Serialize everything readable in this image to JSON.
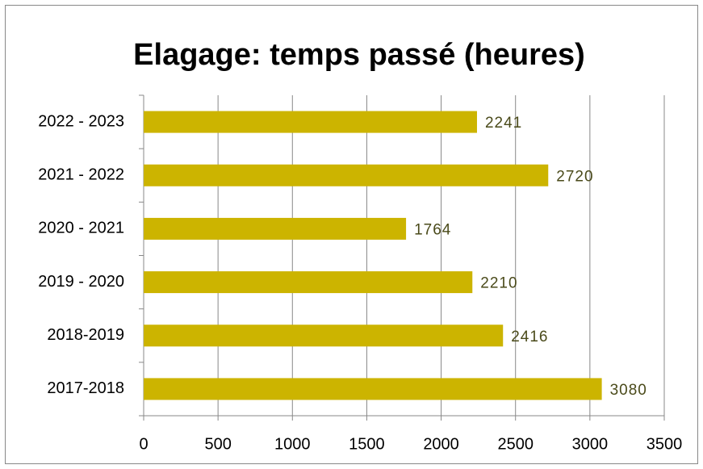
{
  "chart_data": {
    "type": "hbar",
    "title": "Elagage: temps passé (heures)",
    "categories": [
      "2022 - 2023",
      "2021 - 2022",
      "2020 - 2021",
      "2019 - 2020",
      "2018-2019",
      "2017-2018"
    ],
    "values": [
      2241,
      2720,
      1764,
      2210,
      2416,
      3080
    ],
    "color": "#ccb400",
    "xlim": [
      0,
      3500
    ],
    "xticks": [
      0,
      500,
      1000,
      1500,
      2000,
      2500,
      3000,
      3500
    ],
    "grid": true
  }
}
